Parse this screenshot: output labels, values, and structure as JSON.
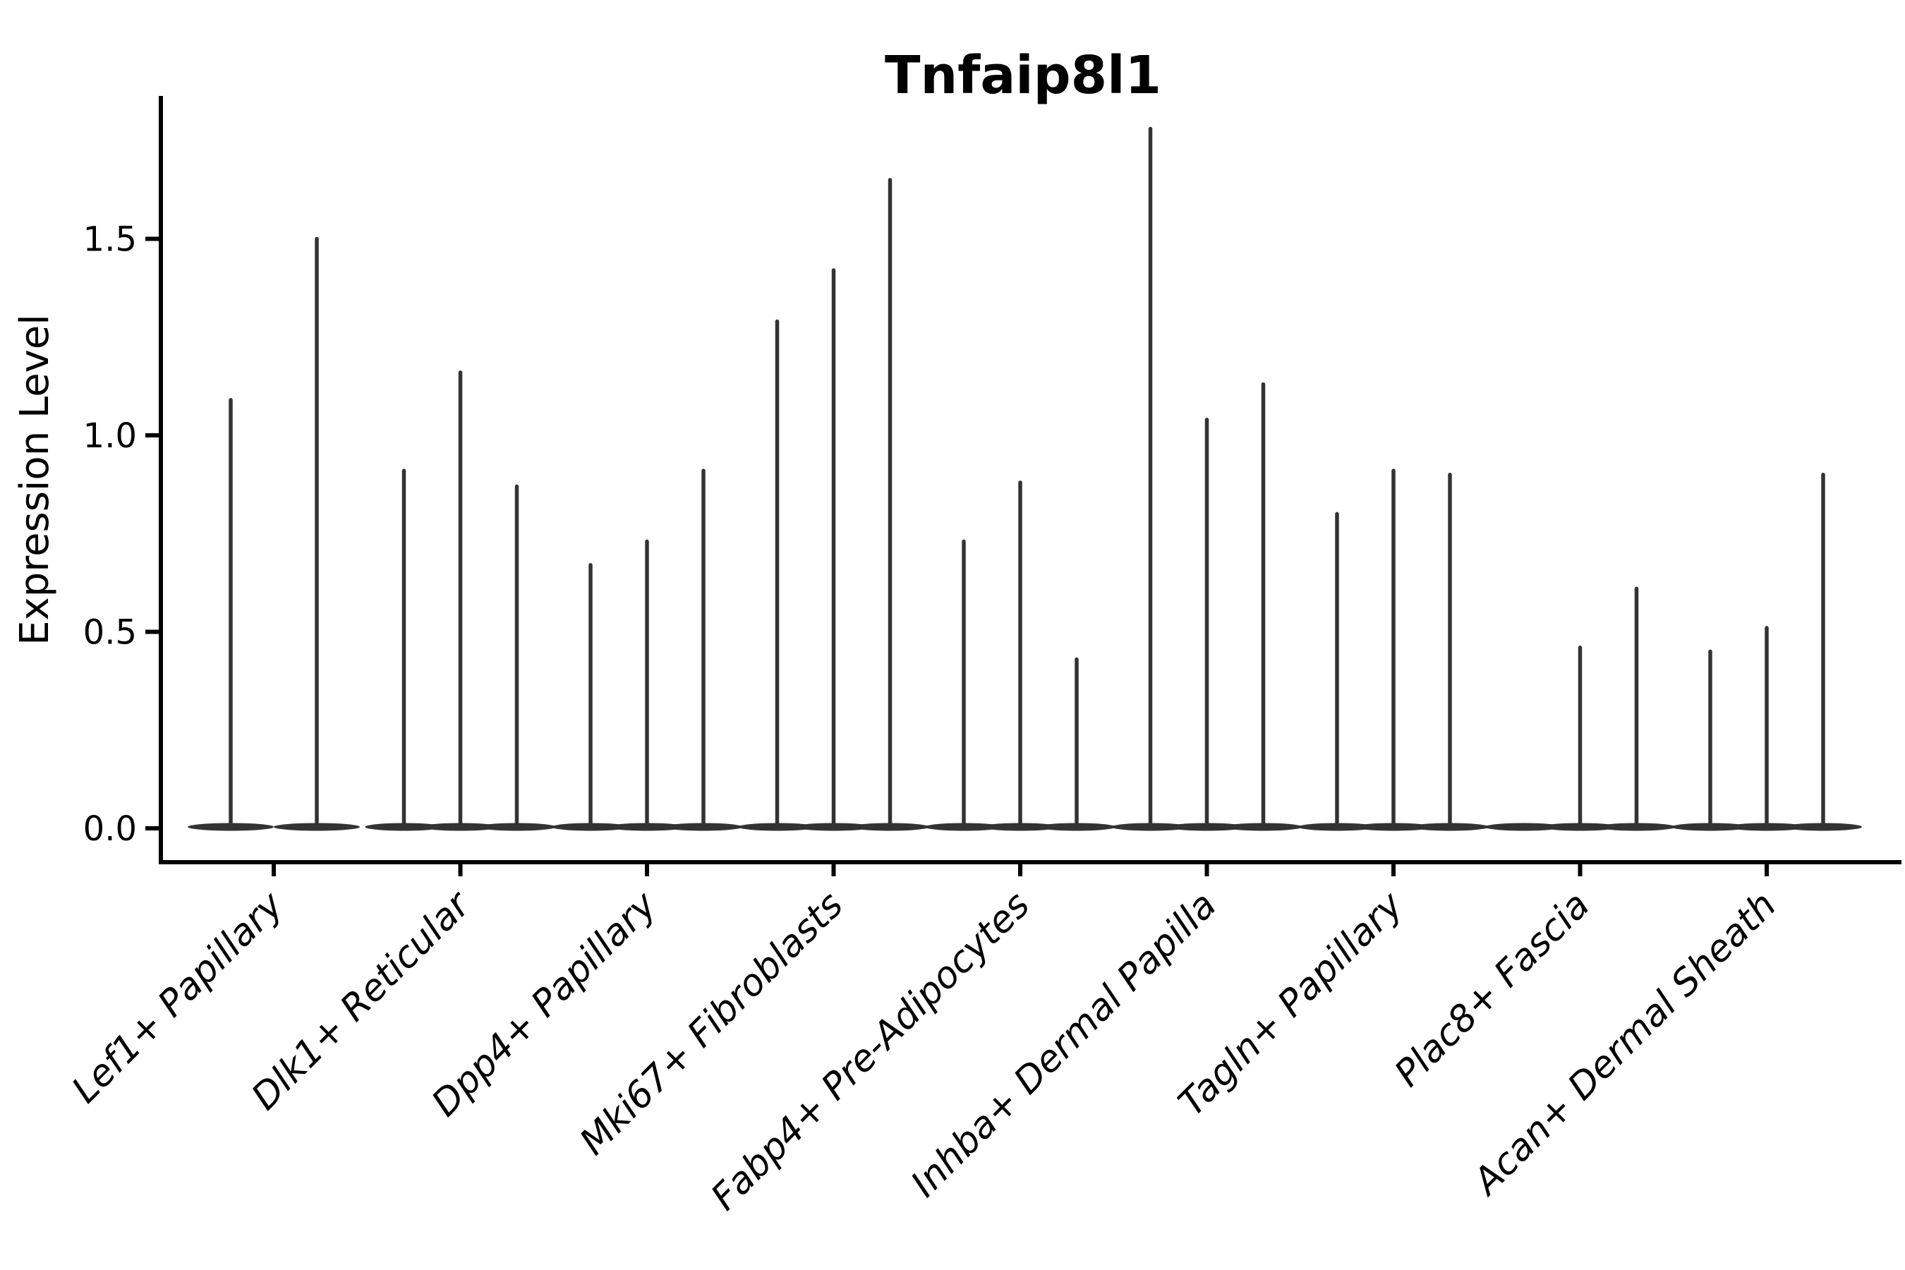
{
  "chart_data": {
    "type": "violin",
    "title": "Tnfaip8l1",
    "ylabel": "Expression Level",
    "xlabel": "",
    "ytick_labels": [
      "0.0",
      "0.5",
      "1.0",
      "1.5"
    ],
    "ytick_values": [
      0.0,
      0.5,
      1.0,
      1.5
    ],
    "ylim": [
      -0.085,
      1.86
    ],
    "grid": false,
    "legend": "none",
    "background": "#ffffff",
    "violin_color": "#333333",
    "axis_color": "#000000",
    "text_color": "#000000",
    "violin_style": "thin spike violins: density mass flattened at 0 (wide flat base), narrow spike rising to each violin's maximum expression value",
    "categories": [
      "Lef1+ Papillary",
      "Dlk1+ Reticular",
      "Dpp4+ Papillary",
      "Mki67+ Fibroblasts",
      "Fabp4+ Pre-Adipocytes",
      "Inhba+ Dermal Papilla",
      "Tagln+ Papillary",
      "Plac8+ Fascia",
      "Acan+ Dermal Sheath"
    ],
    "series": [
      {
        "category": "Lef1+ Papillary",
        "violin_maxima": [
          1.09,
          1.5
        ]
      },
      {
        "category": "Dlk1+ Reticular",
        "violin_maxima": [
          0.91,
          1.16,
          0.87
        ]
      },
      {
        "category": "Dpp4+ Papillary",
        "violin_maxima": [
          0.67,
          0.73,
          0.91
        ]
      },
      {
        "category": "Mki67+ Fibroblasts",
        "violin_maxima": [
          1.29,
          1.42,
          1.65
        ]
      },
      {
        "category": "Fabp4+ Pre-Adipocytes",
        "violin_maxima": [
          0.73,
          0.88,
          0.43
        ]
      },
      {
        "category": "Inhba+ Dermal Papilla",
        "violin_maxima": [
          1.78,
          1.04,
          1.13
        ]
      },
      {
        "category": "Tagln+ Papillary",
        "violin_maxima": [
          0.8,
          0.91,
          0.9
        ]
      },
      {
        "category": "Plac8+ Fascia",
        "violin_maxima": [
          0.0,
          0.46,
          0.61
        ]
      },
      {
        "category": "Acan+ Dermal Sheath",
        "violin_maxima": [
          0.45,
          0.51,
          0.9
        ]
      }
    ]
  }
}
